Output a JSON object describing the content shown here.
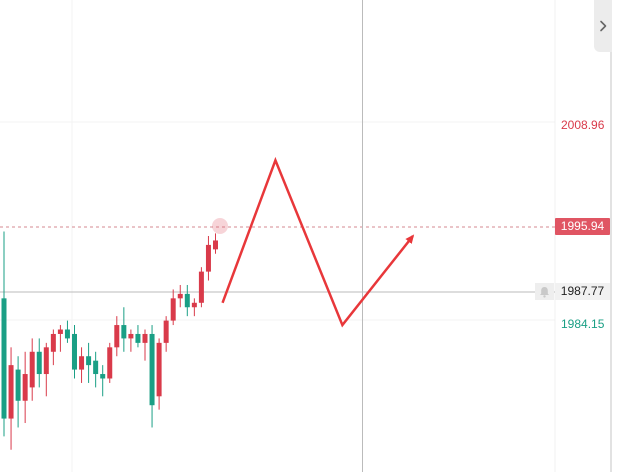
{
  "price_axis": {
    "high": "2008.96",
    "current": "1995.94",
    "crosshair": "1987.77",
    "low": "1984.15"
  },
  "icons": {
    "expand": "chevron-right-icon",
    "alert": "bell-icon"
  },
  "colors": {
    "up": "#d93a4a",
    "down": "#1a9f85",
    "current_badge": "#e05563",
    "arrow": "#e8373a"
  },
  "chart_data": {
    "type": "candlestick",
    "price_scale": {
      "min": 1970,
      "max": 2023
    },
    "reference_lines": {
      "current": 1995.94,
      "crosshair": 1987.77
    },
    "candles": [
      {
        "o": 1989.5,
        "h": 1997.0,
        "l": 1974.0,
        "c": 1976.0
      },
      {
        "o": 1976.0,
        "h": 1984.0,
        "l": 1972.5,
        "c": 1982.0
      },
      {
        "o": 1981.5,
        "h": 1983.0,
        "l": 1975.0,
        "c": 1978.0
      },
      {
        "o": 1978.0,
        "h": 1983.5,
        "l": 1975.5,
        "c": 1981.0
      },
      {
        "o": 1979.5,
        "h": 1985.0,
        "l": 1978.0,
        "c": 1983.5
      },
      {
        "o": 1983.5,
        "h": 1985.0,
        "l": 1979.5,
        "c": 1981.0
      },
      {
        "o": 1981.0,
        "h": 1984.5,
        "l": 1978.5,
        "c": 1984.0
      },
      {
        "o": 1983.5,
        "h": 1986.0,
        "l": 1982.0,
        "c": 1985.5
      },
      {
        "o": 1985.5,
        "h": 1986.5,
        "l": 1983.5,
        "c": 1986.0
      },
      {
        "o": 1986.0,
        "h": 1987.0,
        "l": 1984.5,
        "c": 1985.0
      },
      {
        "o": 1985.5,
        "h": 1986.5,
        "l": 1980.5,
        "c": 1981.5
      },
      {
        "o": 1981.5,
        "h": 1984.0,
        "l": 1980.0,
        "c": 1983.0
      },
      {
        "o": 1983.0,
        "h": 1984.5,
        "l": 1980.0,
        "c": 1982.0
      },
      {
        "o": 1982.5,
        "h": 1983.5,
        "l": 1979.5,
        "c": 1981.0
      },
      {
        "o": 1981.0,
        "h": 1982.0,
        "l": 1978.5,
        "c": 1980.5
      },
      {
        "o": 1980.5,
        "h": 1984.5,
        "l": 1980.0,
        "c": 1984.0
      },
      {
        "o": 1984.0,
        "h": 1987.5,
        "l": 1983.0,
        "c": 1986.5
      },
      {
        "o": 1986.5,
        "h": 1988.5,
        "l": 1983.5,
        "c": 1985.0
      },
      {
        "o": 1985.0,
        "h": 1986.0,
        "l": 1983.5,
        "c": 1985.5
      },
      {
        "o": 1985.5,
        "h": 1986.5,
        "l": 1984.0,
        "c": 1984.5
      },
      {
        "o": 1984.5,
        "h": 1986.0,
        "l": 1982.5,
        "c": 1985.5
      },
      {
        "o": 1985.5,
        "h": 1986.5,
        "l": 1975.0,
        "c": 1977.5
      },
      {
        "o": 1978.5,
        "h": 1985.0,
        "l": 1977.0,
        "c": 1984.5
      },
      {
        "o": 1984.5,
        "h": 1987.5,
        "l": 1983.5,
        "c": 1987.0
      },
      {
        "o": 1987.0,
        "h": 1990.5,
        "l": 1986.5,
        "c": 1989.5
      },
      {
        "o": 1989.5,
        "h": 1991.0,
        "l": 1988.5,
        "c": 1990.0
      },
      {
        "o": 1990.0,
        "h": 1991.0,
        "l": 1987.5,
        "c": 1988.5
      },
      {
        "o": 1988.5,
        "h": 1989.5,
        "l": 1987.5,
        "c": 1989.0
      },
      {
        "o": 1989.0,
        "h": 1993.0,
        "l": 1988.5,
        "c": 1992.5
      },
      {
        "o": 1992.5,
        "h": 1996.5,
        "l": 1991.5,
        "c": 1995.5
      },
      {
        "o": 1995.0,
        "h": 1996.8,
        "l": 1994.5,
        "c": 1996.0
      }
    ],
    "projection_path": [
      {
        "bar": 31,
        "price": 1989.0
      },
      {
        "bar": 38.5,
        "price": 2005.0
      },
      {
        "bar": 48,
        "price": 1986.5
      },
      {
        "bar": 58,
        "price": 1996.5
      }
    ]
  }
}
